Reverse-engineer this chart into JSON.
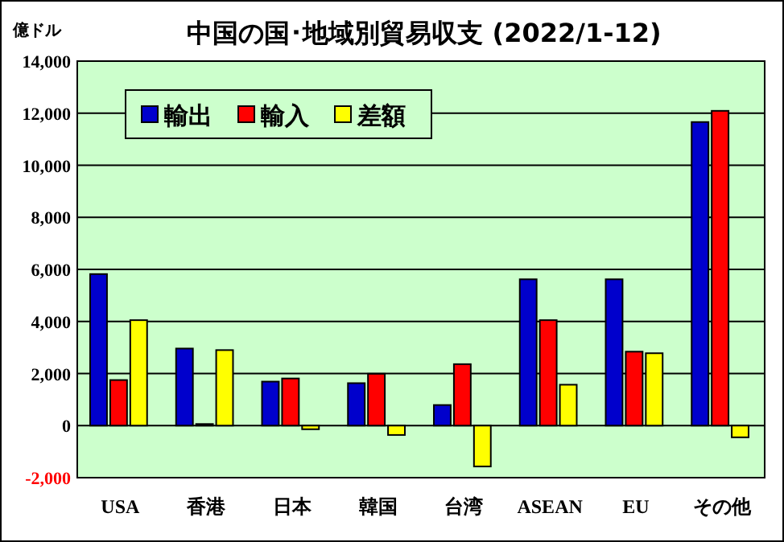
{
  "chart_data": {
    "type": "bar",
    "title": "中国の国･地域別貿易収支 (2022/1-12)",
    "ylabel": "億ドル",
    "categories": [
      "USA",
      "香港",
      "日本",
      "韓国",
      "台湾",
      "ASEAN",
      "EU",
      "その他"
    ],
    "series": [
      {
        "name": "輸出",
        "color": "#0000cc",
        "values": [
          5820,
          2960,
          1690,
          1630,
          790,
          5620,
          5620,
          11660
        ]
      },
      {
        "name": "輸入",
        "color": "#ff0000",
        "values": [
          1750,
          60,
          1810,
          1990,
          2360,
          4050,
          2840,
          12090
        ]
      },
      {
        "name": "差額",
        "color": "#ffff00",
        "values": [
          4050,
          2900,
          -140,
          -360,
          -1570,
          1570,
          2780,
          -450
        ]
      }
    ],
    "ylim": [
      -2000,
      14000
    ],
    "yticks": [
      {
        "value": -2000,
        "label": "-2,000"
      },
      0,
      {
        "value": 2000,
        "label": "2,000"
      },
      {
        "value": 4000,
        "label": "4,000"
      },
      {
        "value": 6000,
        "label": "6,000"
      },
      {
        "value": 8000,
        "label": "8,000"
      },
      {
        "value": 10000,
        "label": "10,000"
      },
      {
        "value": 12000,
        "label": "12,000"
      },
      {
        "value": 14000,
        "label": "14,000"
      }
    ],
    "grid": "y",
    "legend": "top left"
  }
}
